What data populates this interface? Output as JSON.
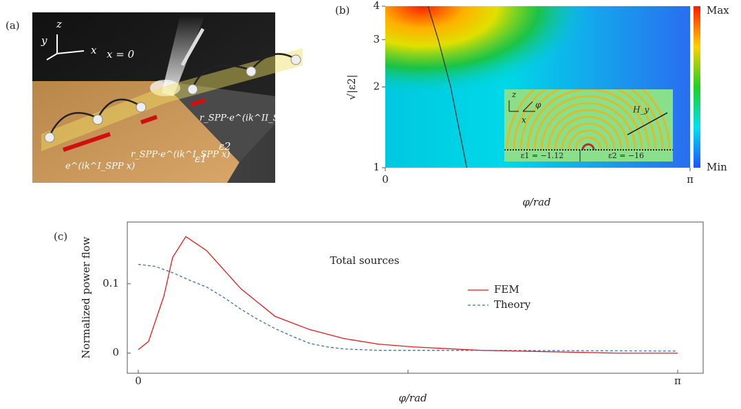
{
  "panel_a": {
    "label": "(a)",
    "axis_labels": [
      "y",
      "z",
      "x"
    ],
    "boundary": "x = 0",
    "annotations": [
      "r_SPP·e^(ik^II_SPP x)",
      "r_SPP·e^(ik^I_SPP x)",
      "e^(ik^I_SPP x)"
    ],
    "media": [
      "ε1",
      "ε2"
    ]
  },
  "chart_data": [
    {
      "type": "heatmap",
      "label": "(b)",
      "xlabel": "φ/rad",
      "ylabel": "√|ε2|",
      "xlim": [
        0,
        3.1416
      ],
      "ylim": [
        1,
        4
      ],
      "log_y": true,
      "xticks": [
        0,
        {
          "value": 3.1416,
          "label": "π"
        }
      ],
      "yticks": [
        1,
        2,
        3,
        4
      ],
      "colorbar_labels": [
        "Max",
        "Min"
      ],
      "curve": {
        "x": [
          0.44,
          0.546,
          0.674,
          0.84
        ],
        "y": [
          4,
          3,
          2,
          1
        ],
        "color": "#333"
      },
      "inset_labels": [
        "z",
        "x",
        "φ",
        "H_y",
        "ε1 = −1.12",
        "ε2 = −16"
      ]
    },
    {
      "type": "line",
      "label": "(c)",
      "xlabel": "φ/rad",
      "ylabel": "Normalized power flow",
      "annotation": "Total sources",
      "xlim": [
        -0.064,
        3.29
      ],
      "ylim": [
        -0.029,
        0.189
      ],
      "xticks": [
        0,
        {
          "value": 1.5708,
          "label": null
        },
        {
          "value": 3.1416,
          "label": "π"
        }
      ],
      "yticks": [
        0,
        0.1
      ],
      "series": [
        {
          "name": "FEM",
          "color": "#e31a1c",
          "dash": false,
          "x": [
            0,
            0.06,
            0.15,
            0.2,
            0.277,
            0.397,
            0.597,
            0.797,
            0.998,
            1.198,
            1.398,
            1.599,
            2.0,
            2.4,
            2.8,
            3.1416
          ],
          "values": [
            0.005,
            0.017,
            0.083,
            0.138,
            0.168,
            0.148,
            0.093,
            0.053,
            0.034,
            0.021,
            0.013,
            0.009,
            0.004,
            0.002,
            0.0,
            0.0
          ]
        },
        {
          "name": "Theory",
          "color": "#3a6fb5",
          "dash": true,
          "x": [
            0,
            0.1,
            0.2,
            0.3,
            0.4,
            0.5,
            0.6,
            0.7,
            0.8,
            0.9,
            1.0,
            1.1,
            1.2,
            1.4,
            2.0,
            3.1416
          ],
          "values": [
            0.128,
            0.125,
            0.116,
            0.105,
            0.095,
            0.08,
            0.063,
            0.048,
            0.035,
            0.024,
            0.014,
            0.009,
            0.006,
            0.004,
            0.004,
            0.003
          ]
        }
      ]
    }
  ]
}
